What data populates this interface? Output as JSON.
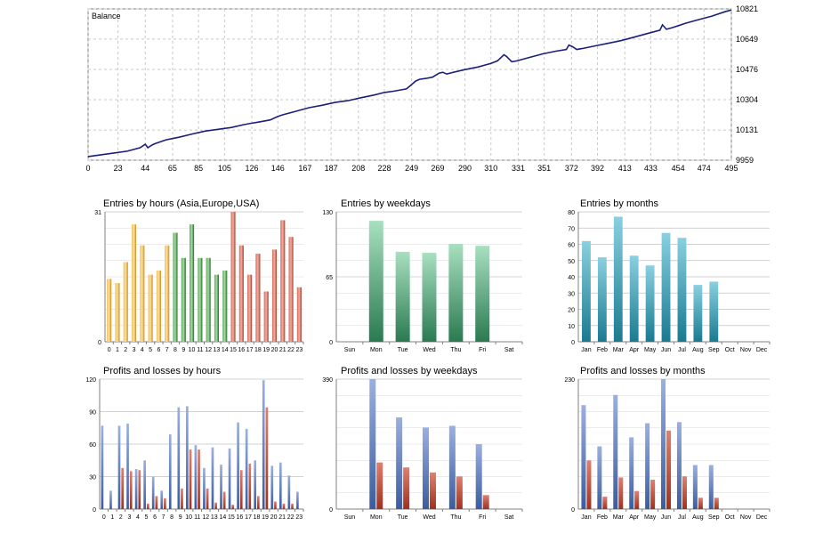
{
  "colors": {
    "balance_line": "#1a1f7a",
    "asia": "#e0a020",
    "europe": "#2e8b2e",
    "usa": "#c8473a",
    "weekday_bar": "#3a9a66",
    "month_bar": "#2a9ab0",
    "profit": "#4f70b8",
    "loss": "#b8402e"
  },
  "chart_data": [
    {
      "type": "line",
      "title": "Balance",
      "x_ticks": [
        0,
        23,
        44,
        65,
        85,
        105,
        126,
        146,
        167,
        187,
        208,
        228,
        249,
        269,
        290,
        310,
        331,
        351,
        372,
        392,
        413,
        433,
        454,
        474,
        495
      ],
      "y_ticks": [
        9959,
        10131,
        10304,
        10476,
        10649,
        10821
      ],
      "xlim": [
        0,
        495
      ],
      "ylim": [
        9959,
        10821
      ],
      "x": [
        0,
        10,
        20,
        30,
        40,
        44,
        46,
        48,
        50,
        52,
        60,
        70,
        80,
        90,
        100,
        110,
        120,
        126,
        130,
        140,
        146,
        150,
        160,
        170,
        180,
        190,
        200,
        210,
        220,
        228,
        235,
        245,
        249,
        252,
        255,
        260,
        265,
        270,
        273,
        276,
        280,
        290,
        300,
        310,
        315,
        320,
        322,
        326,
        330,
        340,
        350,
        360,
        368,
        370,
        373,
        376,
        380,
        390,
        400,
        410,
        420,
        430,
        440,
        442,
        445,
        450,
        460,
        470,
        480,
        490,
        495
      ],
      "y": [
        9980,
        9990,
        10000,
        10010,
        10030,
        10050,
        10030,
        10040,
        10048,
        10055,
        10075,
        10090,
        10108,
        10125,
        10135,
        10145,
        10162,
        10170,
        10175,
        10188,
        10208,
        10218,
        10238,
        10258,
        10272,
        10288,
        10298,
        10315,
        10330,
        10345,
        10352,
        10365,
        10390,
        10410,
        10420,
        10425,
        10432,
        10455,
        10460,
        10450,
        10458,
        10475,
        10490,
        10510,
        10525,
        10560,
        10550,
        10520,
        10525,
        10545,
        10565,
        10580,
        10590,
        10615,
        10605,
        10590,
        10595,
        10610,
        10625,
        10640,
        10660,
        10680,
        10700,
        10730,
        10705,
        10715,
        10740,
        10760,
        10780,
        10805,
        10815
      ]
    },
    {
      "type": "bar",
      "title": "Entries by hours (Asia,Europe,USA)",
      "categories": [
        "0",
        "1",
        "2",
        "3",
        "4",
        "5",
        "6",
        "7",
        "8",
        "9",
        "10",
        "11",
        "12",
        "13",
        "14",
        "15",
        "16",
        "17",
        "18",
        "19",
        "20",
        "21",
        "22",
        "23"
      ],
      "values": [
        15,
        14,
        19,
        28,
        23,
        16,
        17,
        23,
        26,
        20,
        28,
        20,
        20,
        16,
        17,
        31,
        23,
        16,
        21,
        12,
        22,
        29,
        25,
        13
      ],
      "sessions": [
        "asia",
        "asia",
        "asia",
        "asia",
        "asia",
        "asia",
        "asia",
        "asia",
        "europe",
        "europe",
        "europe",
        "europe",
        "europe",
        "europe",
        "europe",
        "usa",
        "usa",
        "usa",
        "usa",
        "usa",
        "usa",
        "usa",
        "usa",
        "usa"
      ],
      "y_ticks": [
        0,
        31
      ],
      "ylim": [
        0,
        31
      ]
    },
    {
      "type": "bar",
      "title": "Entries by weekdays",
      "categories": [
        "Sun",
        "Mon",
        "Tue",
        "Wed",
        "Thu",
        "Fri",
        "Sat"
      ],
      "values": [
        0,
        121,
        90,
        89,
        98,
        96,
        0
      ],
      "y_ticks": [
        0,
        65,
        130
      ],
      "ylim": [
        0,
        130
      ]
    },
    {
      "type": "bar",
      "title": "Entries by months",
      "categories": [
        "Jan",
        "Feb",
        "Mar",
        "Apr",
        "May",
        "Jun",
        "Jul",
        "Aug",
        "Sep",
        "Oct",
        "Nov",
        "Dec"
      ],
      "values": [
        62,
        52,
        77,
        53,
        47,
        67,
        64,
        35,
        37,
        0,
        0,
        0
      ],
      "y_ticks": [
        0,
        10,
        20,
        30,
        40,
        50,
        60,
        70,
        80
      ],
      "ylim": [
        0,
        80
      ]
    },
    {
      "type": "bar",
      "title": "Profits and losses by hours",
      "categories": [
        "0",
        "1",
        "2",
        "3",
        "4",
        "5",
        "6",
        "7",
        "8",
        "9",
        "10",
        "11",
        "12",
        "13",
        "14",
        "15",
        "16",
        "17",
        "18",
        "19",
        "20",
        "21",
        "22",
        "23"
      ],
      "series": [
        {
          "values": [
            77,
            17,
            77,
            79,
            37,
            45,
            30,
            17,
            69,
            94,
            95,
            59,
            38,
            57,
            41,
            56,
            80,
            74,
            45,
            119,
            40,
            43,
            31,
            16
          ]
        },
        {
          "values": [
            0,
            0,
            38,
            35,
            36,
            5,
            12,
            10,
            0,
            19,
            55,
            55,
            19,
            6,
            16,
            4,
            36,
            42,
            12,
            94,
            7,
            5,
            5,
            0
          ]
        }
      ],
      "y_ticks": [
        0,
        30,
        60,
        90,
        120
      ],
      "ylim": [
        0,
        120
      ]
    },
    {
      "type": "bar",
      "title": "Profits and losses by weekdays",
      "categories": [
        "Sun",
        "Mon",
        "Tue",
        "Wed",
        "Thu",
        "Fri",
        "Sat"
      ],
      "series": [
        {
          "values": [
            0,
            390,
            275,
            245,
            250,
            195,
            0
          ]
        },
        {
          "values": [
            0,
            140,
            125,
            110,
            98,
            42,
            0
          ]
        }
      ],
      "y_ticks": [
        0,
        390
      ],
      "ylim": [
        0,
        390
      ]
    },
    {
      "type": "bar",
      "title": "Profits and losses by months",
      "categories": [
        "Jan",
        "Feb",
        "Mar",
        "Apr",
        "May",
        "Jun",
        "Jul",
        "Aug",
        "Sep",
        "Oct",
        "Nov",
        "Dec"
      ],
      "series": [
        {
          "values": [
            184,
            111,
            202,
            127,
            152,
            230,
            154,
            78,
            78,
            0,
            0,
            0
          ]
        },
        {
          "values": [
            86,
            22,
            56,
            32,
            52,
            139,
            58,
            20,
            20,
            0,
            0,
            0
          ]
        }
      ],
      "y_ticks": [
        0,
        230
      ],
      "ylim": [
        0,
        230
      ]
    }
  ]
}
